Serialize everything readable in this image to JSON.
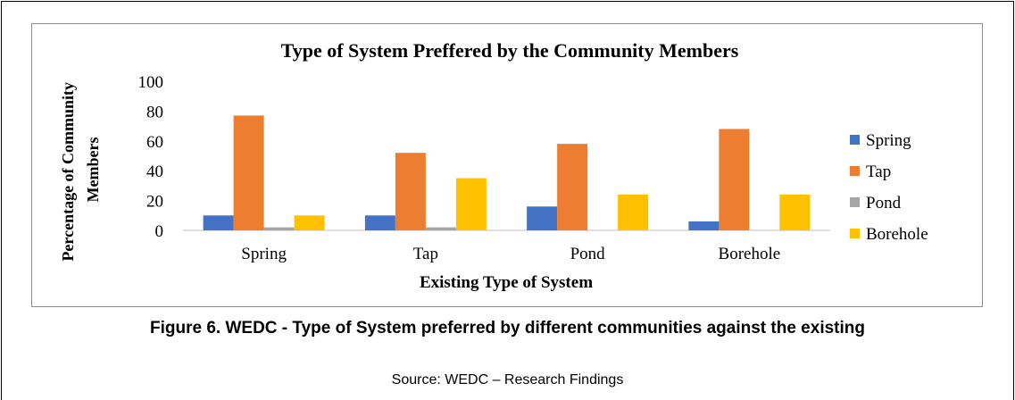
{
  "caption": "Figure 6. WEDC - Type of System preferred by different communities against the existing",
  "source": "Source: WEDC – Research Findings",
  "chart_data": {
    "type": "bar",
    "title": "Type of System Preffered by the Community Members",
    "xlabel": "Existing Type of System",
    "ylabel": "Percentage of Community Members",
    "categories": [
      "Spring",
      "Tap",
      "Pond",
      "Borehole"
    ],
    "series": [
      {
        "name": "Spring",
        "color": "#4472C4",
        "values": [
          10,
          10,
          16,
          6
        ]
      },
      {
        "name": "Tap",
        "color": "#ED7D31",
        "values": [
          77,
          52,
          58,
          68
        ]
      },
      {
        "name": "Pond",
        "color": "#A5A5A5",
        "values": [
          2,
          2,
          0,
          0
        ]
      },
      {
        "name": "Borehole",
        "color": "#FFC000",
        "values": [
          10,
          35,
          24,
          24
        ]
      }
    ],
    "yticks": [
      "0",
      "20",
      "40",
      "60",
      "80",
      "100"
    ],
    "ylim": [
      0,
      100
    ],
    "grid": false,
    "legend": "right"
  }
}
